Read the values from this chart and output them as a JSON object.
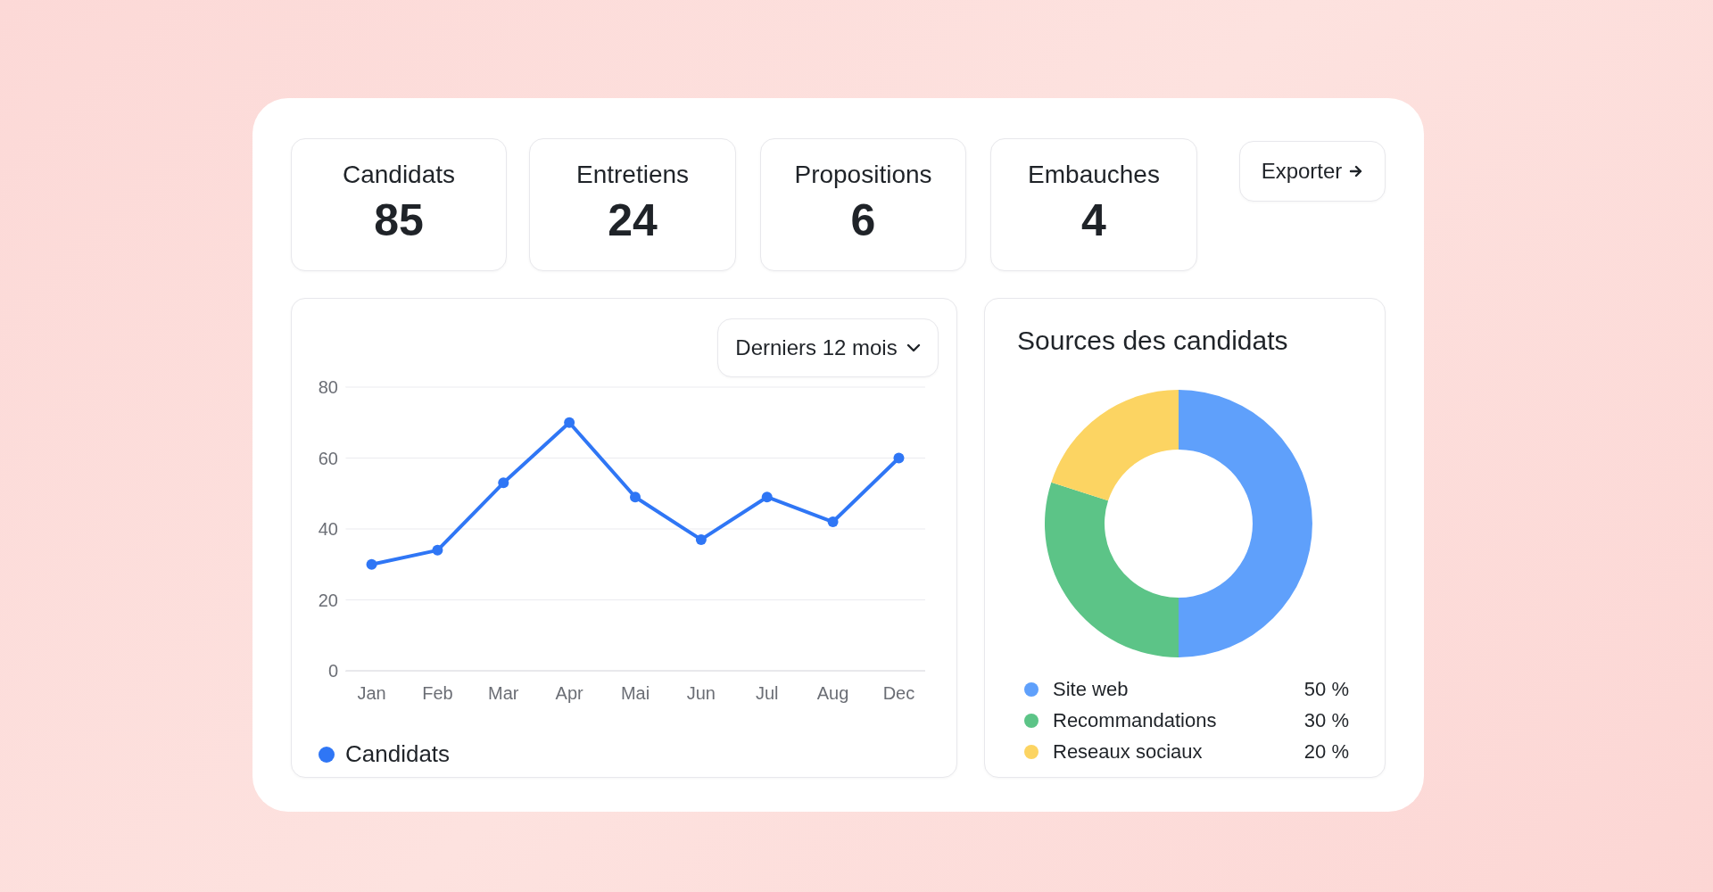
{
  "chart_data": [
    {
      "type": "other",
      "categories": [
        "Candidats",
        "Entretiens",
        "Propositions",
        "Embauches"
      ],
      "values": [
        85,
        24,
        6,
        4
      ],
      "data_labels": true,
      "annotations": [
        "Exporter"
      ]
    },
    {
      "type": "line",
      "categories": [
        "Jan",
        "Feb",
        "Mar",
        "Apr",
        "Mai",
        "Jun",
        "Jul",
        "Aug",
        "Dec"
      ],
      "series": [
        {
          "name": "Candidats",
          "color": "#2f76f5",
          "values": [
            30,
            34,
            53,
            70,
            49,
            37,
            49,
            42,
            60
          ]
        }
      ],
      "ylim": [
        0,
        80
      ],
      "yticks": [
        0,
        20,
        40,
        60,
        80
      ],
      "grid": "y",
      "marker": "circle",
      "legend": "bottom left",
      "annotations": [
        "Derniers 12 mois"
      ]
    },
    {
      "type": "donut",
      "title": "Sources des candidats",
      "categories": [
        "Site web",
        "Recommandations",
        "Reseaux sociaux"
      ],
      "values": [
        50,
        30,
        20
      ],
      "colors": [
        "#5fa0fb",
        "#5cc487",
        "#fcd462"
      ],
      "value_labels": [
        "50 %",
        "30 %",
        "20 %"
      ],
      "legend": "bottom"
    }
  ]
}
